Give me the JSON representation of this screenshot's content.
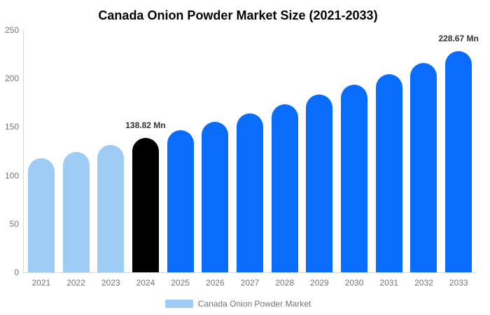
{
  "title": "Canada Onion Powder Market Size (2021-2033)",
  "legend": {
    "label": "Canada Onion Powder Market",
    "swatch_color": "#9fccf5"
  },
  "colors": {
    "light_blue": "#9fccf5",
    "blue": "#0a6cfa",
    "black": "#000000",
    "axis_line": "#d9d9d9",
    "tick_text": "#757575",
    "annotation_text": "#333333"
  },
  "chart_data": {
    "type": "bar",
    "title": "Canada Onion Powder Market Size (2021-2033)",
    "unit": "Mn",
    "categories": [
      "2021",
      "2022",
      "2023",
      "2024",
      "2025",
      "2026",
      "2027",
      "2028",
      "2029",
      "2030",
      "2031",
      "2032",
      "2033"
    ],
    "values": [
      117.5,
      124.2,
      131.3,
      138.82,
      146.7,
      155.1,
      164.0,
      173.3,
      183.2,
      193.7,
      204.7,
      216.4,
      228.67
    ],
    "bar_colors": [
      "#9fccf5",
      "#9fccf5",
      "#9fccf5",
      "#000000",
      "#0a6cfa",
      "#0a6cfa",
      "#0a6cfa",
      "#0a6cfa",
      "#0a6cfa",
      "#0a6cfa",
      "#0a6cfa",
      "#0a6cfa",
      "#0a6cfa"
    ],
    "annotations": [
      {
        "index": 3,
        "text": "138.82 Mn"
      },
      {
        "index": 12,
        "text": "228.67 Mn"
      }
    ],
    "xlabel": "",
    "ylabel": "",
    "ylim": [
      0,
      250
    ],
    "yticks": [
      0,
      50,
      100,
      150,
      200,
      250
    ],
    "grid": false,
    "legend_position": "bottom",
    "legend_entries": [
      "Canada Onion Powder Market"
    ]
  }
}
